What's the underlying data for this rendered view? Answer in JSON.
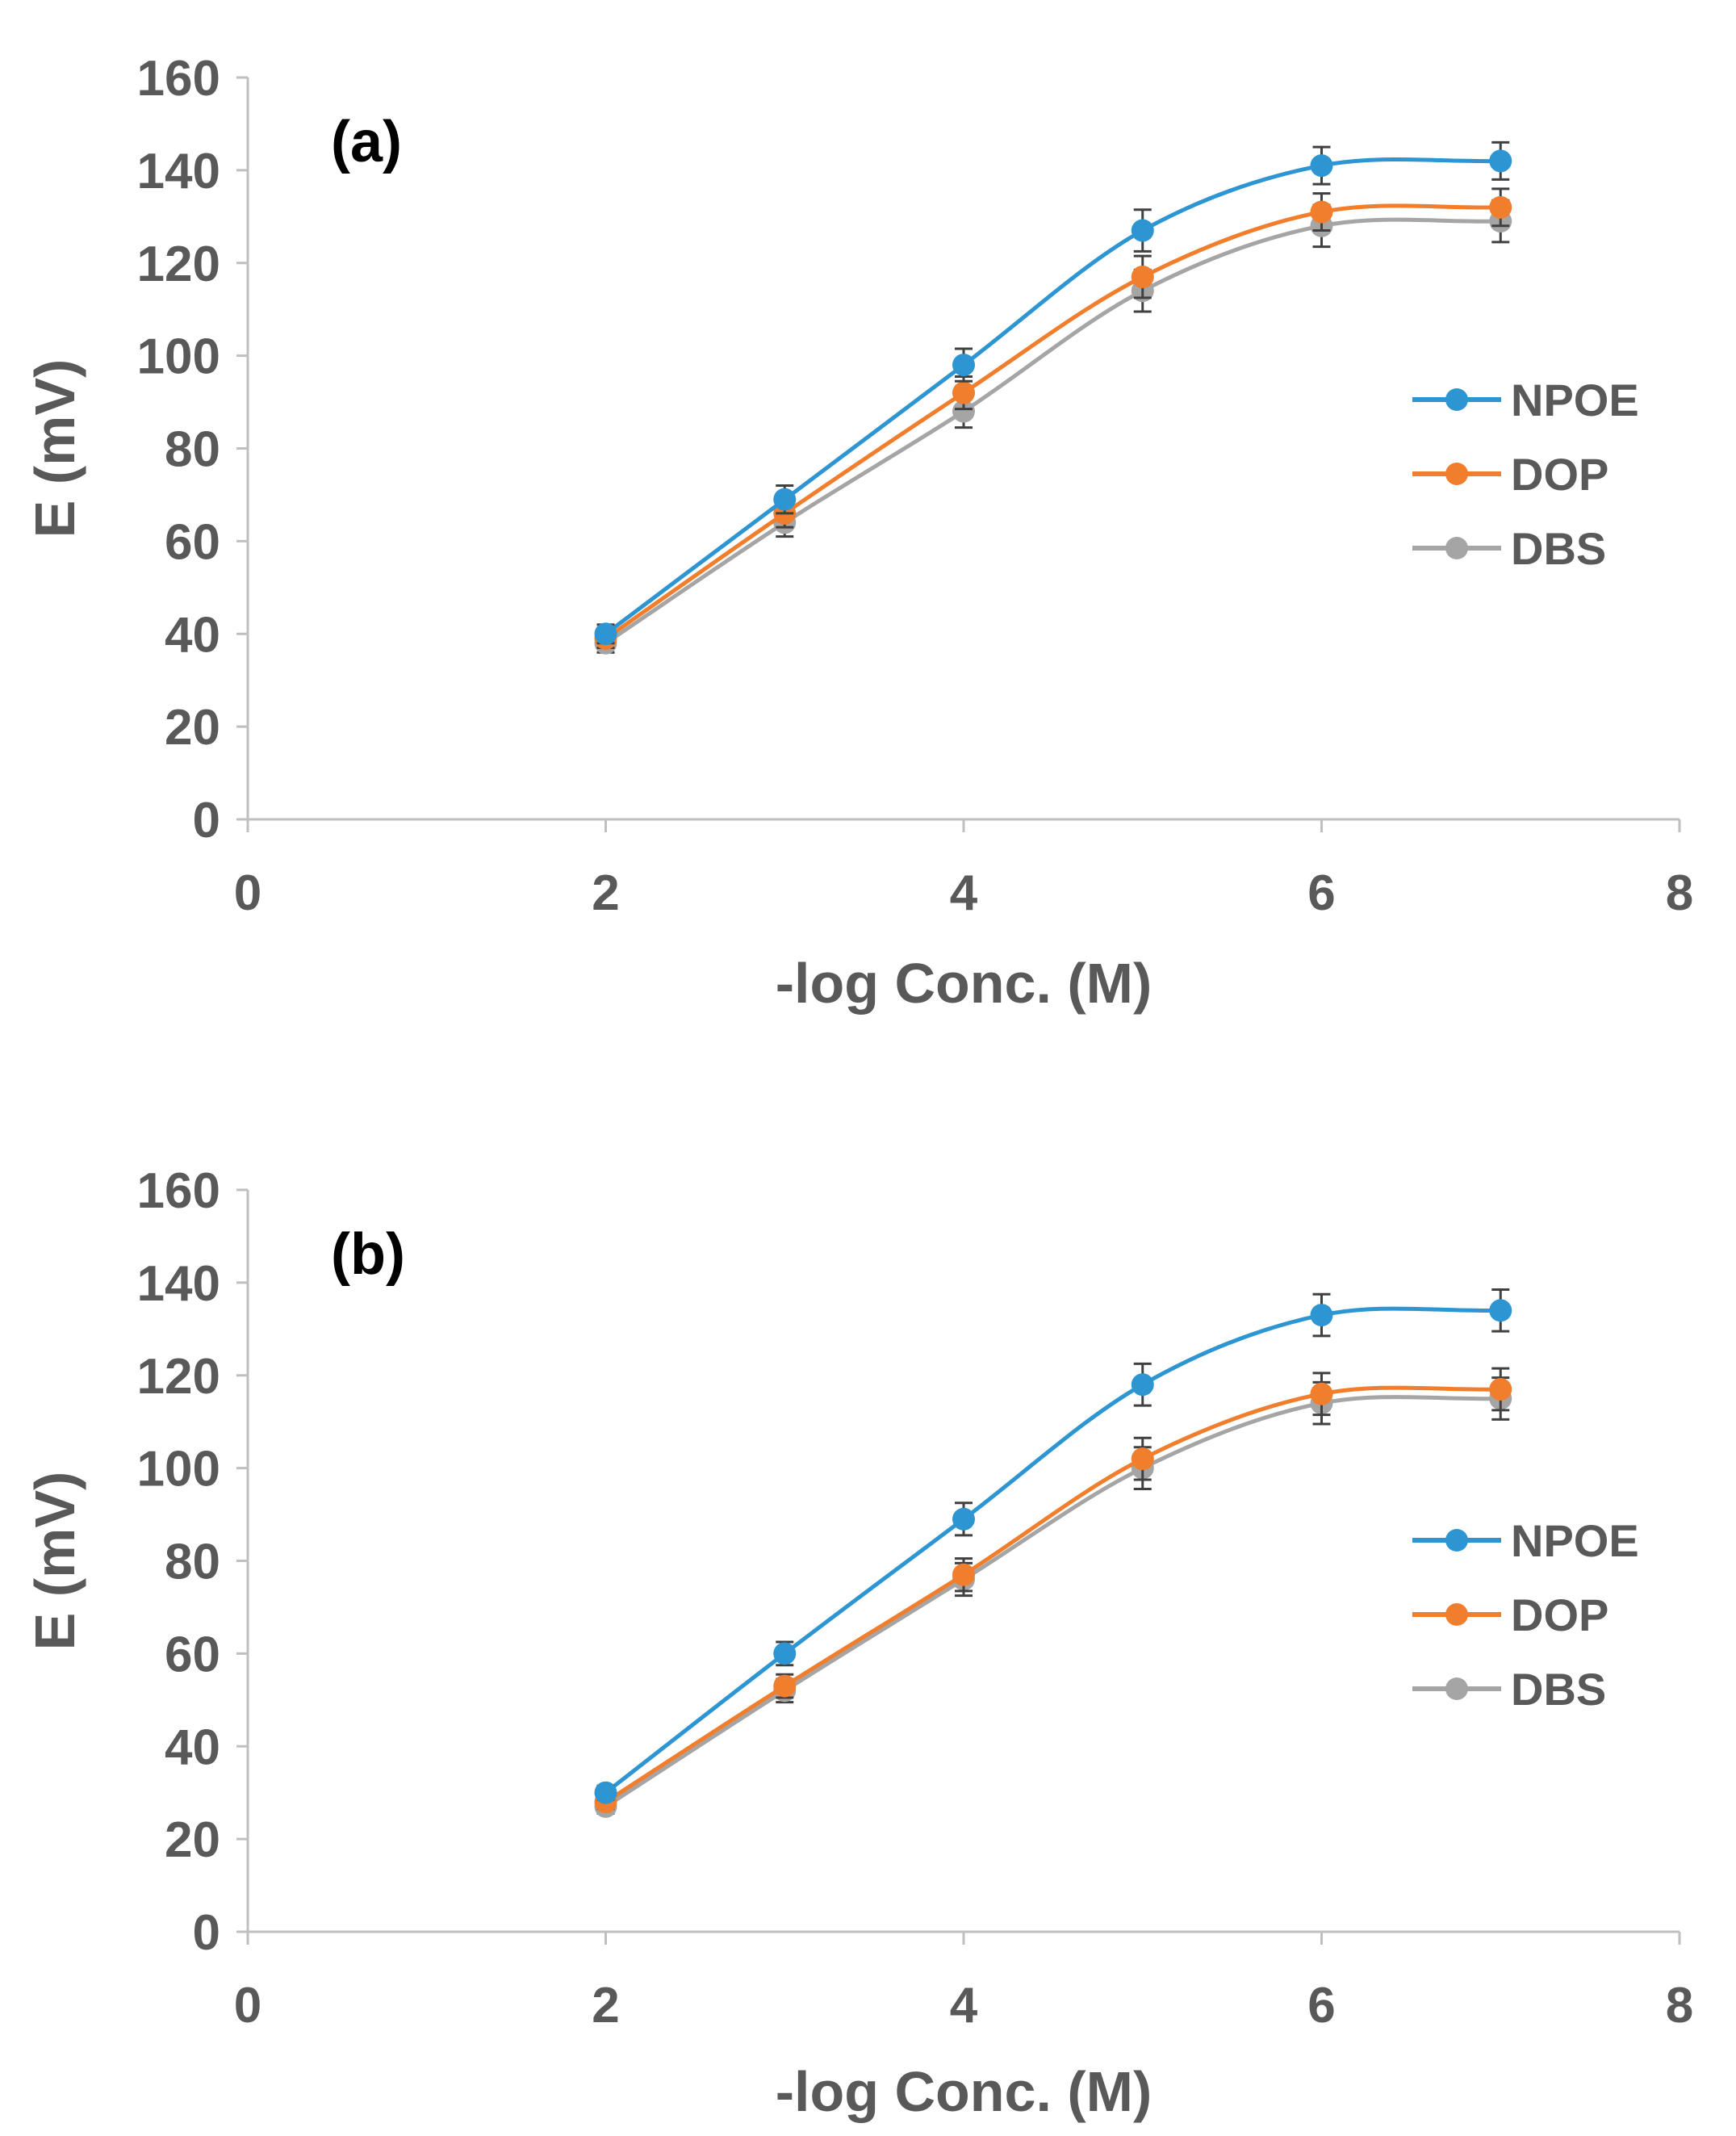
{
  "chart_data": [
    {
      "type": "line",
      "panel_label": "(a)",
      "xlabel": "-log Conc. (M)",
      "ylabel": "E (mV)",
      "xlim": [
        0,
        8
      ],
      "ylim": [
        0,
        160
      ],
      "xticks": [
        "0",
        "2",
        "4",
        "6",
        "8"
      ],
      "yticks": [
        "0",
        "20",
        "40",
        "60",
        "80",
        "100",
        "120",
        "140",
        "160"
      ],
      "x": [
        2,
        3,
        4,
        5,
        6,
        7
      ],
      "error_bars": true,
      "smoothed": true,
      "legend_position": "right",
      "series": [
        {
          "name": "NPOE",
          "color": "#2E95D3",
          "values": [
            40,
            69,
            98,
            127,
            141,
            142
          ],
          "errors": [
            2,
            3,
            3.5,
            4.5,
            4,
            4
          ]
        },
        {
          "name": "DOP",
          "color": "#F07E2C",
          "values": [
            39,
            66,
            92,
            117,
            131,
            132
          ],
          "errors": [
            2,
            3,
            3.5,
            4.5,
            4,
            4
          ]
        },
        {
          "name": "DBS",
          "color": "#A5A5A5",
          "values": [
            38,
            64,
            88,
            114,
            128,
            129
          ],
          "errors": [
            2,
            3,
            3.5,
            4.5,
            4.5,
            4.5
          ]
        }
      ]
    },
    {
      "type": "line",
      "panel_label": "(b)",
      "xlabel": "-log Conc. (M)",
      "ylabel": "E (mV)",
      "xlim": [
        0,
        8
      ],
      "ylim": [
        0,
        160
      ],
      "xticks": [
        "0",
        "2",
        "4",
        "6",
        "8"
      ],
      "yticks": [
        "0",
        "20",
        "40",
        "60",
        "80",
        "100",
        "120",
        "140",
        "160"
      ],
      "x": [
        2,
        3,
        4,
        5,
        6,
        7
      ],
      "error_bars": true,
      "smoothed": true,
      "legend_position": "right",
      "series": [
        {
          "name": "NPOE",
          "color": "#2E95D3",
          "values": [
            30,
            60,
            89,
            118,
            133,
            134
          ],
          "errors": [
            1.5,
            2.5,
            3.5,
            4.5,
            4.5,
            4.5
          ]
        },
        {
          "name": "DOP",
          "color": "#F07E2C",
          "values": [
            28,
            53,
            77,
            102,
            116,
            117
          ],
          "errors": [
            1.5,
            2.5,
            3.5,
            4.5,
            4.5,
            4.5
          ]
        },
        {
          "name": "DBS",
          "color": "#A5A5A5",
          "values": [
            27,
            52,
            76,
            100,
            114,
            115
          ],
          "errors": [
            1.5,
            2.5,
            3.5,
            4.5,
            4.5,
            4.5
          ]
        }
      ]
    }
  ]
}
